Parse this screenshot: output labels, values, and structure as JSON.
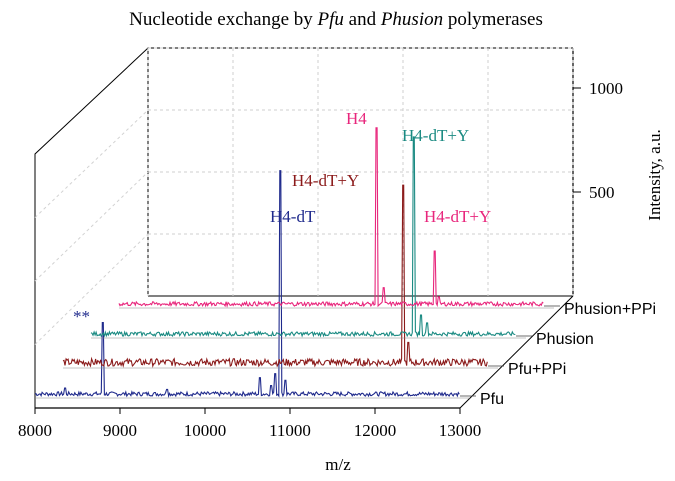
{
  "chart_data": {
    "type": "line",
    "title": {
      "pre": "Nucleotide exchange by ",
      "italic1": "Pfu",
      "mid": " and ",
      "italic2": "Phusion",
      "post": " polymerases"
    },
    "xlabel": "m/z",
    "ylabel": "Intensity, a.u.",
    "xlim": [
      8000,
      13000
    ],
    "ylim": [
      0,
      1100
    ],
    "x_ticks": [
      "8000",
      "9000",
      "10000",
      "11000",
      "12000",
      "13000"
    ],
    "y_ticks": [
      "500",
      "1000"
    ],
    "grid": true,
    "series": [
      {
        "name": "Pfu",
        "color": "#1f2a8c",
        "peaks": [
          {
            "x": 8350,
            "y": 30
          },
          {
            "x": 8800,
            "y": 280
          },
          {
            "x": 9550,
            "y": 25
          },
          {
            "x": 10650,
            "y": 70
          },
          {
            "x": 10780,
            "y": 40
          },
          {
            "x": 10830,
            "y": 85
          },
          {
            "x": 10885,
            "y": 860
          },
          {
            "x": 10950,
            "y": 60
          }
        ]
      },
      {
        "name": "Pfu+PPi",
        "color": "#8b1a1a",
        "peaks": [
          {
            "x": 12000,
            "y": 690
          },
          {
            "x": 12060,
            "y": 90
          }
        ]
      },
      {
        "name": "Phusion",
        "color": "#1a8a82",
        "peaks": [
          {
            "x": 11800,
            "y": 760
          },
          {
            "x": 11880,
            "y": 80
          },
          {
            "x": 11950,
            "y": 50
          }
        ]
      },
      {
        "name": "Phusion+PPi",
        "color": "#e8267c",
        "peaks": [
          {
            "x": 11030,
            "y": 680
          },
          {
            "x": 11110,
            "y": 70
          },
          {
            "x": 11710,
            "y": 210
          },
          {
            "x": 11760,
            "y": 35
          }
        ]
      }
    ],
    "annotations": [
      {
        "text": "**",
        "x": 8800,
        "color": "#1f2a8c"
      },
      {
        "text": "H4-dT",
        "color": "#1f2a8c"
      },
      {
        "text": "H4-dT+Y",
        "color": "#8b1a1a"
      },
      {
        "text": "H4",
        "color": "#e8267c"
      },
      {
        "text": "H4-dT+Y",
        "color": "#1a8a82"
      },
      {
        "text": "H4-dT+Y",
        "color": "#e8267c"
      }
    ]
  }
}
